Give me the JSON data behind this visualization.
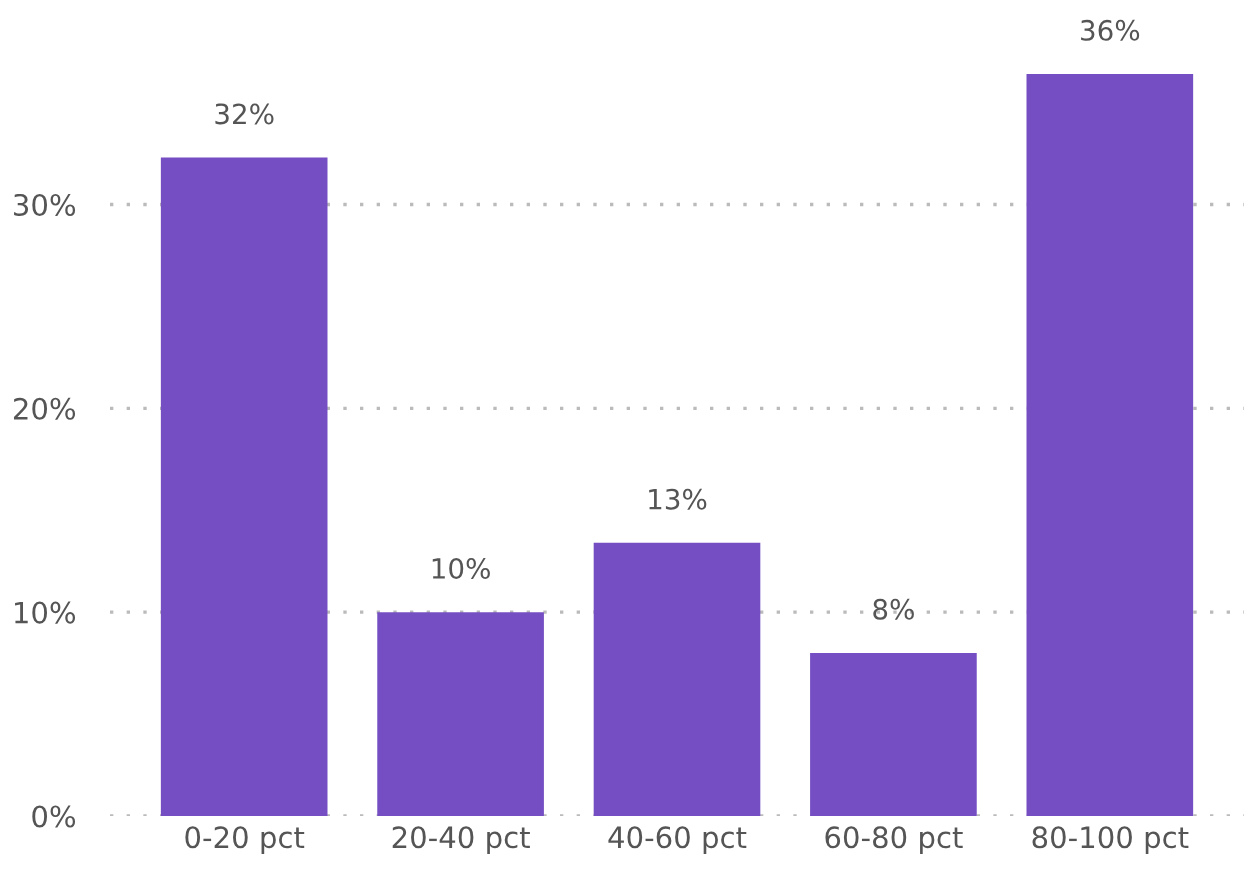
{
  "chart_data": {
    "type": "bar",
    "categories": [
      "0-20 pct",
      "20-40 pct",
      "40-60 pct",
      "60-80 pct",
      "80-100 pct"
    ],
    "values": [
      32.3,
      10,
      13.4,
      8,
      36.4
    ],
    "value_labels": [
      "32%",
      "10%",
      "13%",
      "8%",
      "36%"
    ],
    "color": "#744ec2",
    "ylim": [
      0,
      36.4
    ],
    "yticks": [
      {
        "value": 0,
        "label": "0%"
      },
      {
        "value": 10,
        "label": "10%"
      },
      {
        "value": 20,
        "label": "20%"
      },
      {
        "value": 30,
        "label": "30%"
      }
    ],
    "grid": "y",
    "legend": false
  }
}
